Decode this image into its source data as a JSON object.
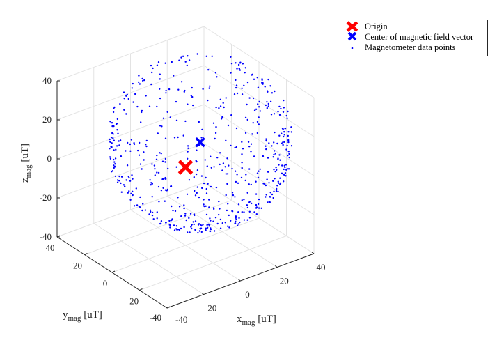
{
  "chart_data": {
    "type": "scatter3d",
    "title": "",
    "xlabel": {
      "main": "x",
      "sub": "mag",
      "unit": " [uT]"
    },
    "ylabel": {
      "main": "y",
      "sub": "mag",
      "unit": " [uT]"
    },
    "zlabel": {
      "main": "z",
      "sub": "mag",
      "unit": " [uT]"
    },
    "xlim": [
      -40,
      40
    ],
    "ylim": [
      -40,
      40
    ],
    "zlim": [
      -40,
      40
    ],
    "ticks": [
      -40,
      -20,
      0,
      20,
      40
    ],
    "tick_labels": [
      "-40",
      "-20",
      "0",
      "20",
      "40"
    ],
    "grid": true,
    "legend_position": "top-right-outside",
    "series": [
      {
        "name": "Origin",
        "marker": "x",
        "color": "#ff0000",
        "points": [
          [
            0,
            0,
            0
          ]
        ]
      },
      {
        "name": "Center of magnetic field vector",
        "marker": "x",
        "color": "#0000ff",
        "points": [
          [
            8,
            0,
            10
          ]
        ]
      },
      {
        "name": "Magnetometer data points",
        "marker": ".",
        "color": "#0000ff",
        "generator": {
          "shape": "sphere",
          "center": [
            8,
            0,
            10
          ],
          "radius": 40,
          "count": 620,
          "denser_toward": "bottom"
        }
      }
    ]
  }
}
